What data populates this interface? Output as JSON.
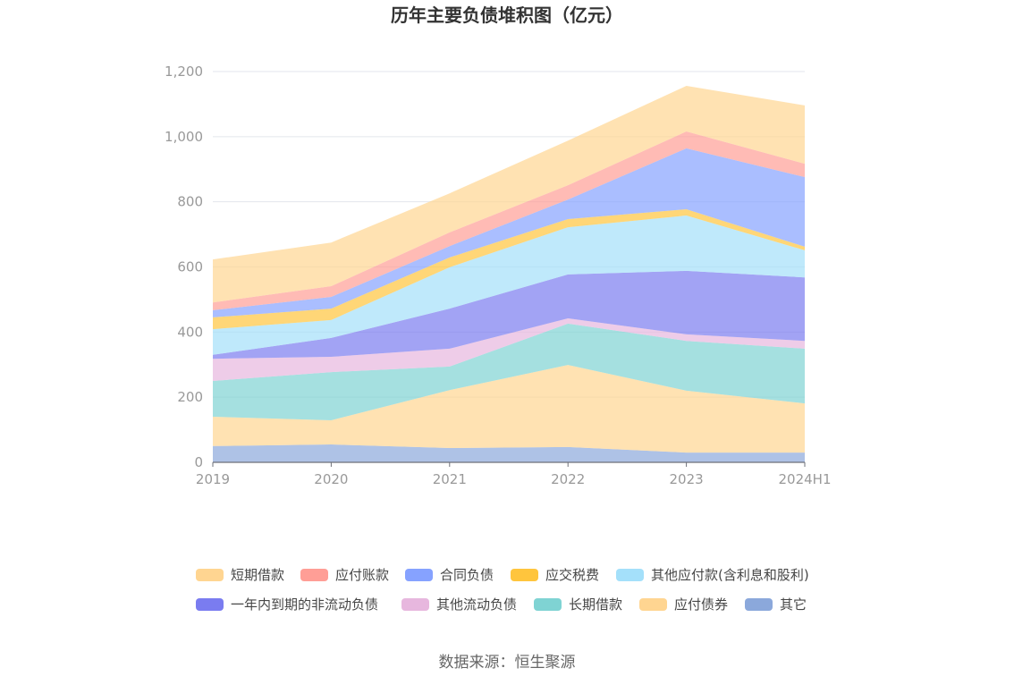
{
  "chart_data": {
    "type": "area",
    "stacked": true,
    "title": "历年主要负债堆积图（亿元）",
    "xlabel": "",
    "ylabel": "",
    "categories": [
      "2019",
      "2020",
      "2021",
      "2022",
      "2023",
      "2024H1"
    ],
    "ylim": [
      0,
      1200
    ],
    "yticks": [
      0,
      200,
      400,
      600,
      800,
      1000,
      1200
    ],
    "ytick_labels": [
      "0",
      "200",
      "400",
      "600",
      "800",
      "1,000",
      "1,200"
    ],
    "grid": true,
    "legend_position": "bottom",
    "series": [
      {
        "name": "短期借款",
        "color": "#FFD591",
        "values": [
          132,
          134,
          120,
          137,
          140,
          179
        ]
      },
      {
        "name": "应付账款",
        "color": "#FF9E96",
        "values": [
          24,
          33,
          42,
          44,
          52,
          41
        ]
      },
      {
        "name": "合同负债",
        "color": "#86A2FF",
        "values": [
          22,
          36,
          35,
          60,
          187,
          214
        ]
      },
      {
        "name": "应交税费",
        "color": "#FFC53D",
        "values": [
          36,
          35,
          30,
          25,
          19,
          11
        ]
      },
      {
        "name": "其他应付款(含利息和股利)",
        "color": "#A4E0FA",
        "values": [
          79,
          55,
          127,
          145,
          170,
          83
        ]
      },
      {
        "name": "一年内到期的非流动负债",
        "color": "#7A7CF0",
        "values": [
          12,
          58,
          123,
          135,
          195,
          195
        ]
      },
      {
        "name": "其他流动负债",
        "color": "#E7B7DE",
        "values": [
          68,
          47,
          55,
          16,
          20,
          24
        ]
      },
      {
        "name": "长期借款",
        "color": "#7FD3D3",
        "values": [
          110,
          148,
          72,
          127,
          153,
          168
        ]
      },
      {
        "name": "应付债券",
        "color": "#FFD591",
        "values": [
          90,
          74,
          178,
          252,
          190,
          151
        ]
      },
      {
        "name": "其它",
        "color": "#8BA8DB",
        "values": [
          50,
          55,
          44,
          47,
          30,
          30
        ]
      }
    ]
  },
  "source": "数据来源：恒生聚源"
}
